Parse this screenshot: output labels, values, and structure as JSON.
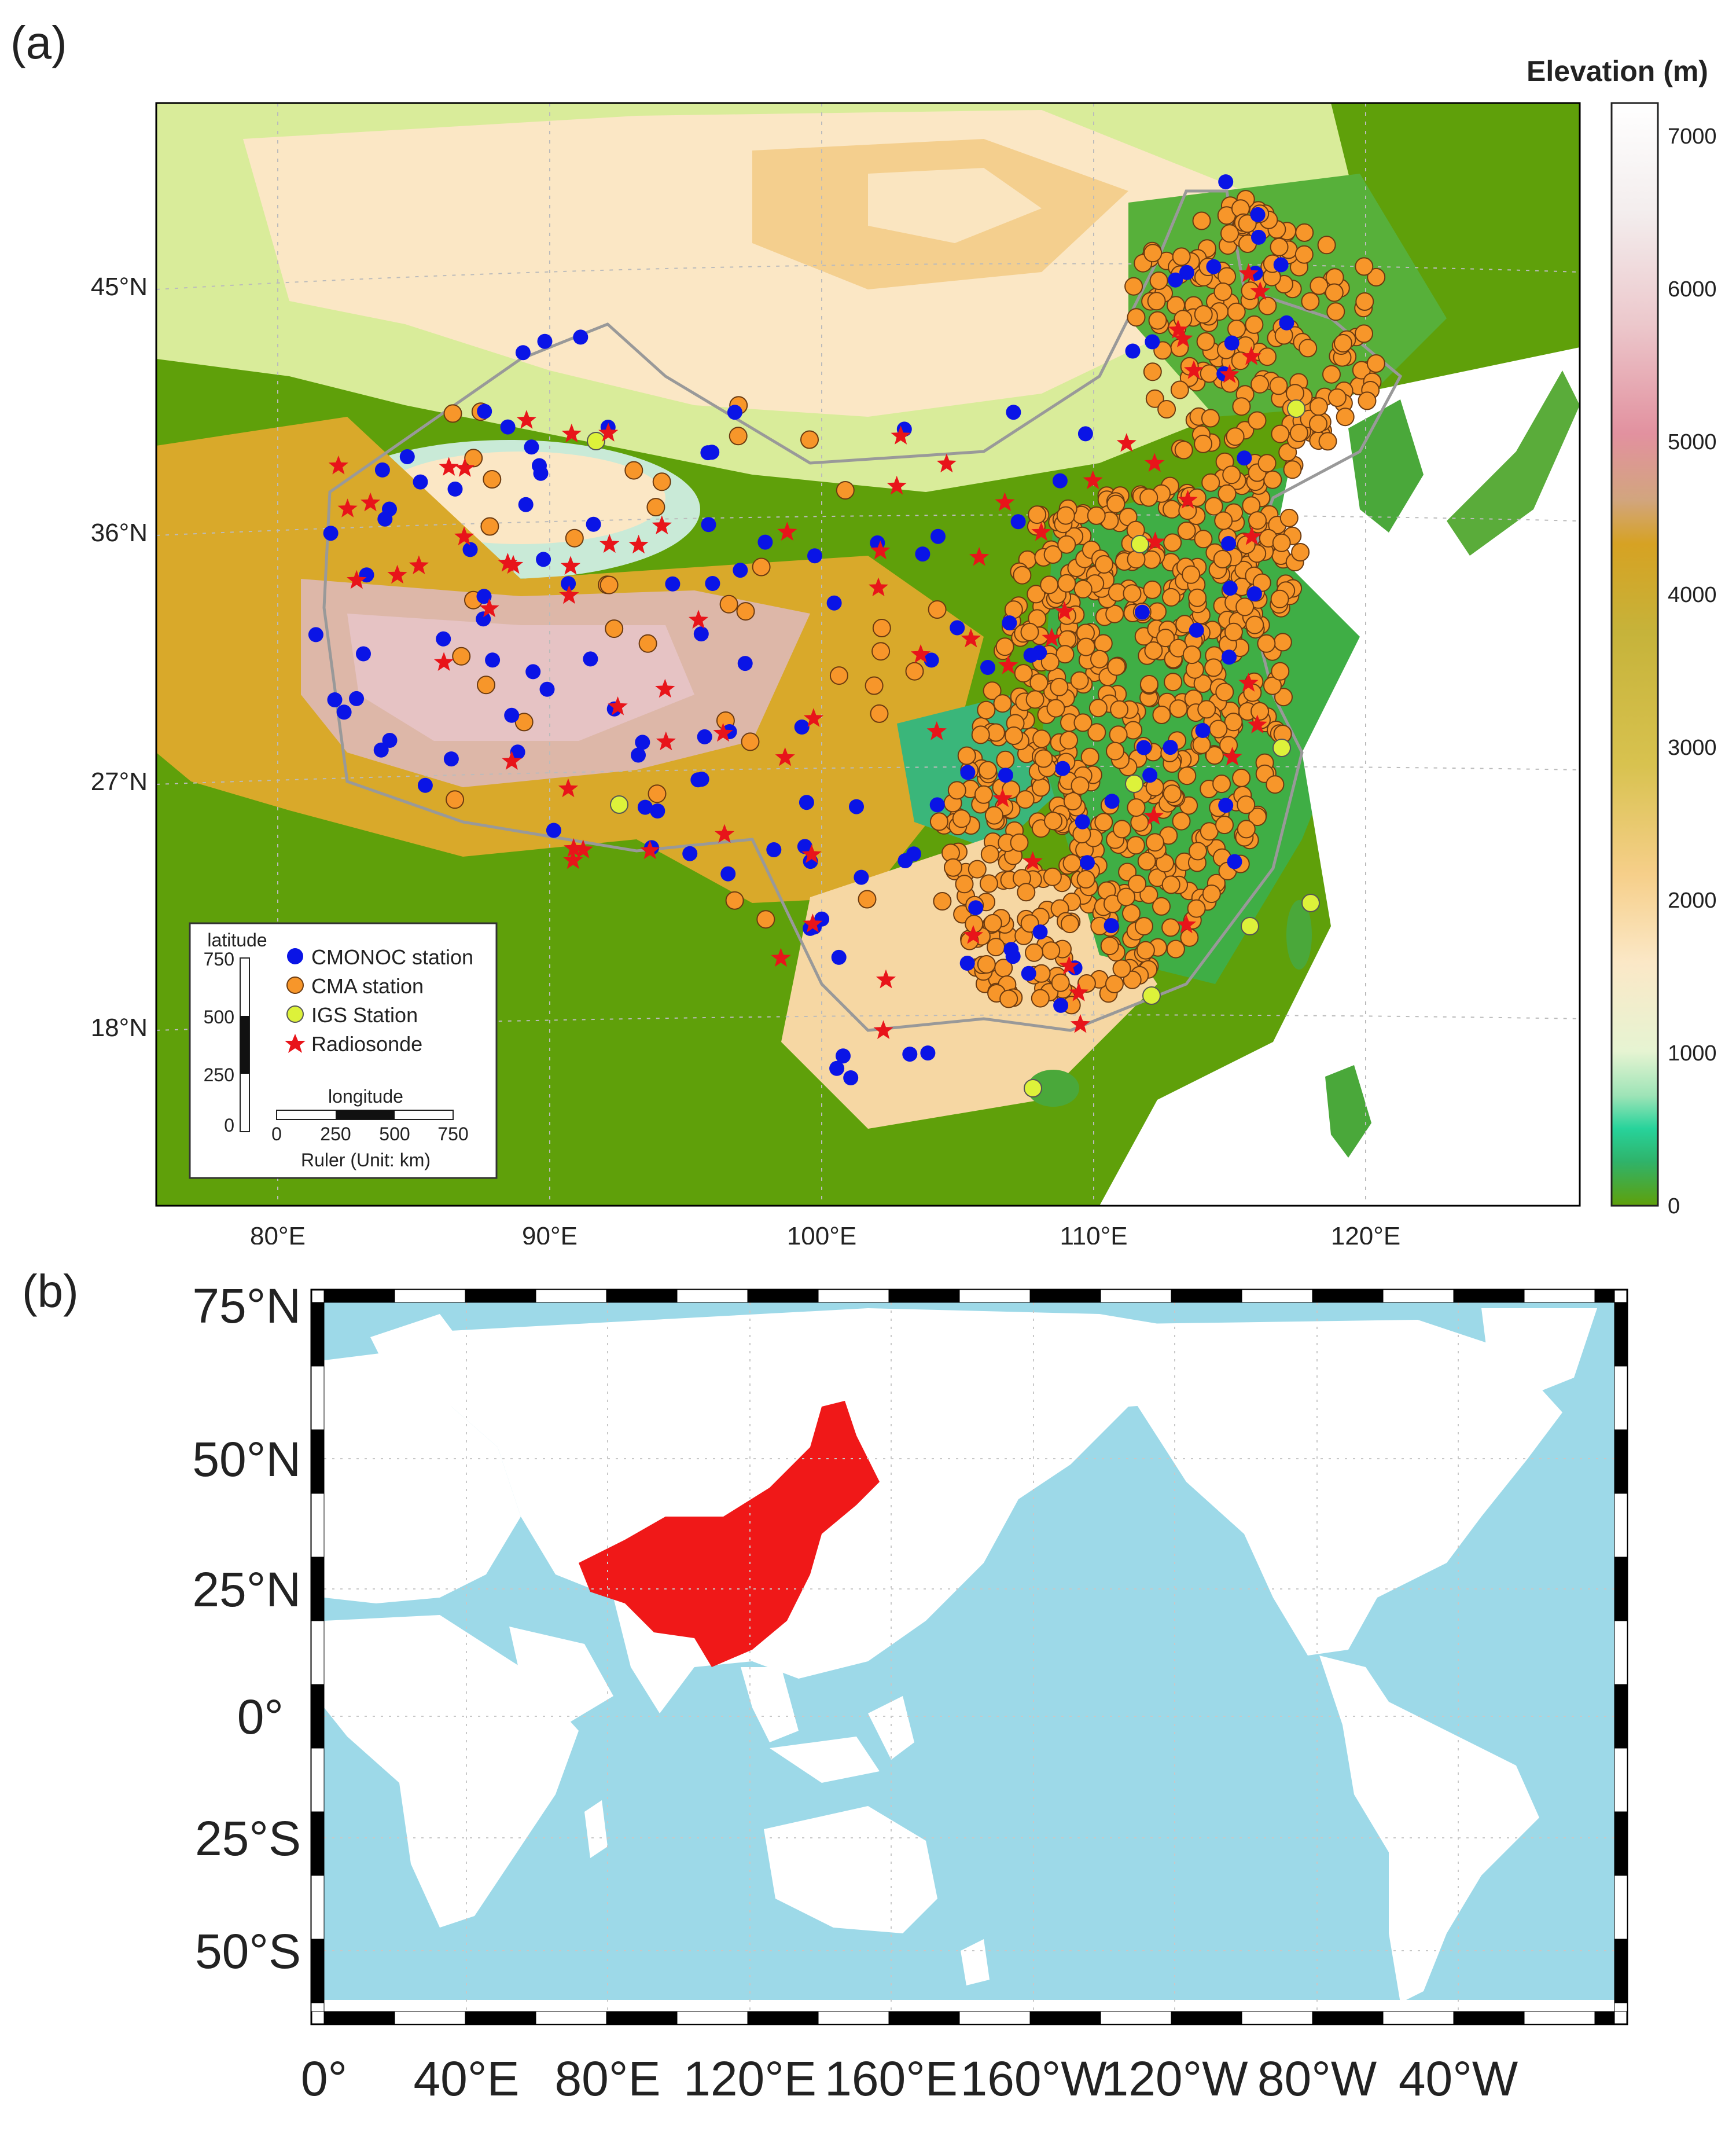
{
  "panel_a": {
    "label": "(a)",
    "lat_ticks": [
      "45°N",
      "36°N",
      "27°N",
      "18°N"
    ],
    "lon_ticks": [
      "80°E",
      "90°E",
      "100°E",
      "110°E",
      "120°E"
    ],
    "colorbar": {
      "title": "Elevation (m)",
      "ticks": [
        "7000",
        "6000",
        "5000",
        "4000",
        "3000",
        "2000",
        "1000",
        "0"
      ]
    },
    "legend": {
      "items": [
        {
          "label": "CMONOC station",
          "color": "#0a14e6",
          "symbol": "circle"
        },
        {
          "label": "CMA station",
          "color": "#f7962a",
          "symbol": "circle"
        },
        {
          "label": "IGS Station",
          "color": "#ddf23a",
          "symbol": "circle"
        },
        {
          "label": "Radiosonde",
          "color": "#e8141a",
          "symbol": "star"
        }
      ]
    },
    "ruler": {
      "lat_title": "latitude",
      "lat_ticks": [
        "750",
        "500",
        "250",
        "0"
      ],
      "lon_title": "longitude",
      "lon_ticks": [
        "0",
        "250",
        "500",
        "750"
      ],
      "caption": "Ruler  (Unit: km)"
    }
  },
  "panel_b": {
    "label": "(b)",
    "lat_ticks": [
      "75°N",
      "50°N",
      "25°N",
      "0°",
      "25°S",
      "50°S"
    ],
    "lon_ticks": [
      "0°",
      "40°E",
      "80°E",
      "120°E",
      "160°E",
      "160°W",
      "120°W",
      "80°W",
      "40°W"
    ],
    "ocean_color": "#9dd9e8",
    "highlight_color": "#f01818"
  }
}
